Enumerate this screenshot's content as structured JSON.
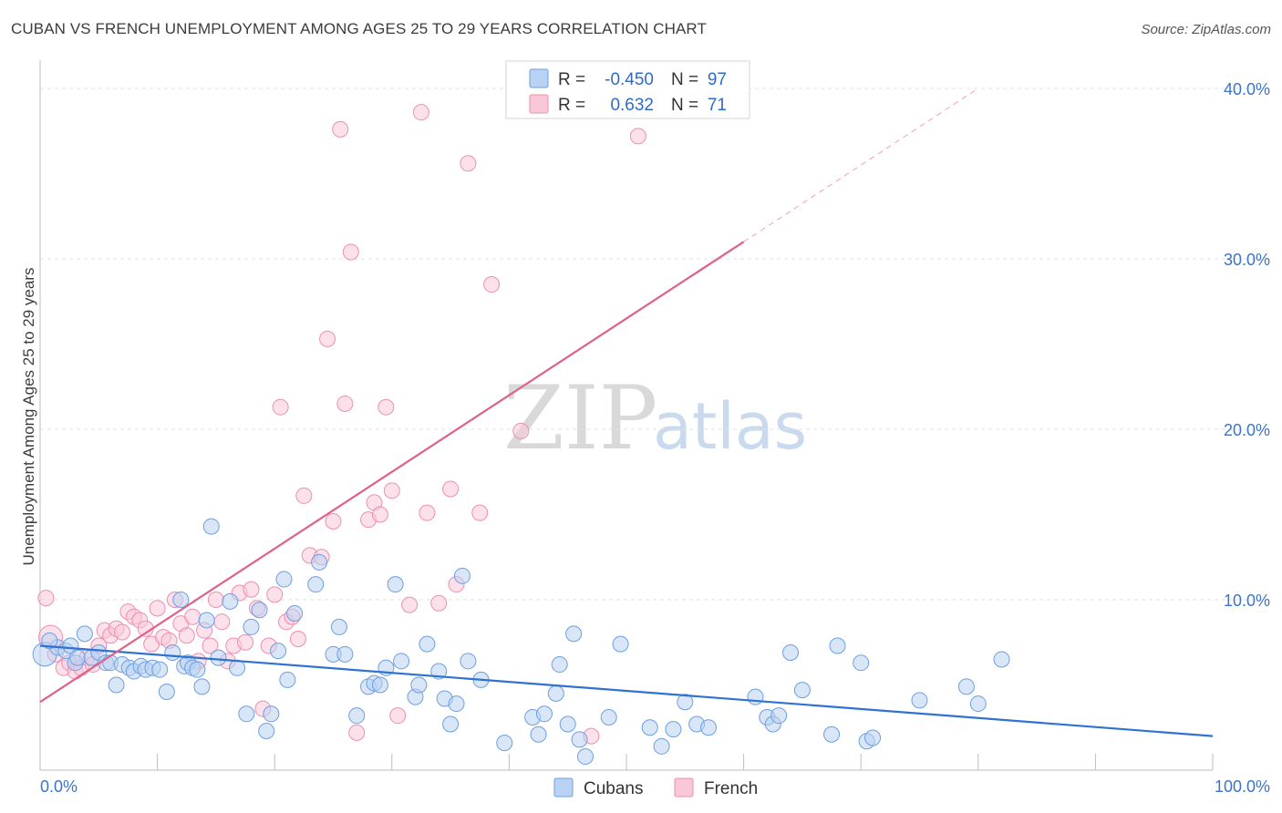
{
  "title": "CUBAN VS FRENCH UNEMPLOYMENT AMONG AGES 25 TO 29 YEARS CORRELATION CHART",
  "source": "Source: ZipAtlas.com",
  "watermark": {
    "zip": "ZIP",
    "atlas": "atlas"
  },
  "legend": {
    "r_label": "R =",
    "n_label": "N =",
    "rows": [
      {
        "name": "Cubans",
        "r": "-0.450",
        "n": "97",
        "fill": "#b9d2f3",
        "stroke": "#6d9fe0"
      },
      {
        "name": "French",
        "r": "0.632",
        "n": "71",
        "fill": "#f9c8d8",
        "stroke": "#ec8fb0"
      }
    ]
  },
  "chart_data": {
    "type": "scatter",
    "title": "CUBAN VS FRENCH UNEMPLOYMENT AMONG AGES 25 TO 29 YEARS CORRELATION CHART",
    "xlabel": "",
    "ylabel": "Unemployment Among Ages 25 to 29 years",
    "xlim": [
      0,
      100
    ],
    "ylim": [
      0,
      40
    ],
    "x_tick_labels": [
      "0.0%",
      "100.0%"
    ],
    "y_ticks": [
      10,
      20,
      30,
      40
    ],
    "y_tick_labels": [
      "10.0%",
      "20.0%",
      "30.0%",
      "40.0%"
    ],
    "grid": "horizontal dashed",
    "legend_position": "top-center",
    "series": [
      {
        "name": "Cubans",
        "color": "#6d9fe0",
        "fill": "#b9d2f3",
        "trend_color": "#2f72d0",
        "trend": {
          "x": [
            0,
            100
          ],
          "y": [
            7.3,
            2.0
          ]
        },
        "points": [
          [
            0.4,
            6.8
          ],
          [
            1.5,
            7.2
          ],
          [
            2.2,
            7.0
          ],
          [
            2.6,
            7.3
          ],
          [
            3.0,
            6.3
          ],
          [
            3.2,
            6.6
          ],
          [
            3.8,
            8.0
          ],
          [
            4.4,
            6.6
          ],
          [
            5.0,
            6.9
          ],
          [
            5.6,
            6.3
          ],
          [
            6.0,
            6.3
          ],
          [
            6.5,
            5.0
          ],
          [
            7.0,
            6.2
          ],
          [
            7.6,
            6.0
          ],
          [
            8.0,
            5.8
          ],
          [
            8.6,
            6.1
          ],
          [
            9.0,
            5.9
          ],
          [
            9.6,
            6.0
          ],
          [
            10.2,
            5.9
          ],
          [
            10.8,
            4.6
          ],
          [
            11.3,
            6.9
          ],
          [
            12.0,
            10.0
          ],
          [
            12.3,
            6.1
          ],
          [
            12.6,
            6.3
          ],
          [
            13.0,
            6.0
          ],
          [
            13.4,
            5.9
          ],
          [
            13.8,
            4.9
          ],
          [
            14.2,
            8.8
          ],
          [
            14.6,
            14.3
          ],
          [
            15.2,
            6.6
          ],
          [
            16.2,
            9.9
          ],
          [
            16.8,
            6.0
          ],
          [
            17.6,
            3.3
          ],
          [
            18.0,
            8.4
          ],
          [
            18.7,
            9.4
          ],
          [
            19.3,
            2.3
          ],
          [
            19.7,
            3.3
          ],
          [
            20.3,
            7.0
          ],
          [
            20.8,
            11.2
          ],
          [
            21.1,
            5.3
          ],
          [
            21.7,
            9.2
          ],
          [
            23.5,
            10.9
          ],
          [
            23.8,
            12.2
          ],
          [
            25.0,
            6.8
          ],
          [
            25.5,
            8.4
          ],
          [
            26.0,
            6.8
          ],
          [
            27.0,
            3.2
          ],
          [
            28.0,
            4.9
          ],
          [
            28.5,
            5.1
          ],
          [
            29.0,
            5.0
          ],
          [
            29.5,
            6.0
          ],
          [
            30.3,
            10.9
          ],
          [
            30.8,
            6.4
          ],
          [
            32.0,
            4.3
          ],
          [
            32.3,
            5.0
          ],
          [
            33.0,
            7.4
          ],
          [
            34.0,
            5.8
          ],
          [
            34.5,
            4.2
          ],
          [
            35.0,
            2.7
          ],
          [
            35.5,
            3.9
          ],
          [
            36.0,
            11.4
          ],
          [
            36.5,
            6.4
          ],
          [
            37.6,
            5.3
          ],
          [
            39.6,
            1.6
          ],
          [
            42.0,
            3.1
          ],
          [
            42.5,
            2.1
          ],
          [
            43.0,
            3.3
          ],
          [
            44.0,
            4.5
          ],
          [
            44.3,
            6.2
          ],
          [
            45.0,
            2.7
          ],
          [
            45.5,
            8.0
          ],
          [
            46.0,
            1.8
          ],
          [
            46.5,
            0.8
          ],
          [
            48.5,
            3.1
          ],
          [
            49.5,
            7.4
          ],
          [
            52.0,
            2.5
          ],
          [
            53.0,
            1.4
          ],
          [
            54.0,
            2.4
          ],
          [
            55.0,
            4.0
          ],
          [
            56.0,
            2.7
          ],
          [
            57.0,
            2.5
          ],
          [
            61.0,
            4.3
          ],
          [
            62.0,
            3.1
          ],
          [
            62.5,
            2.7
          ],
          [
            63.0,
            3.2
          ],
          [
            64.0,
            6.9
          ],
          [
            65.0,
            4.7
          ],
          [
            67.5,
            2.1
          ],
          [
            68.0,
            7.3
          ],
          [
            70.0,
            6.3
          ],
          [
            70.5,
            1.7
          ],
          [
            71.0,
            1.9
          ],
          [
            75.0,
            4.1
          ],
          [
            79.0,
            4.9
          ],
          [
            80.0,
            3.9
          ],
          [
            82.0,
            6.5
          ],
          [
            0.8,
            7.6
          ]
        ]
      },
      {
        "name": "French",
        "color": "#ec8fb0",
        "fill": "#f9c8d8",
        "trend_color": "#e0608c",
        "trend": {
          "x": [
            0,
            60
          ],
          "y": [
            4.0,
            31.0
          ]
        },
        "trend_extension": {
          "x": [
            60,
            80
          ],
          "y": [
            31.0,
            40.0
          ]
        },
        "points": [
          [
            0.5,
            10.1
          ],
          [
            0.9,
            7.8
          ],
          [
            1.3,
            6.8
          ],
          [
            2.0,
            6.0
          ],
          [
            2.5,
            6.3
          ],
          [
            3.0,
            5.8
          ],
          [
            3.5,
            6.0
          ],
          [
            4.0,
            6.6
          ],
          [
            4.5,
            6.2
          ],
          [
            5.0,
            7.3
          ],
          [
            5.5,
            8.2
          ],
          [
            6.0,
            7.9
          ],
          [
            6.5,
            8.3
          ],
          [
            7.0,
            8.1
          ],
          [
            7.5,
            9.3
          ],
          [
            8.0,
            9.0
          ],
          [
            8.5,
            8.8
          ],
          [
            9.0,
            8.3
          ],
          [
            9.5,
            7.4
          ],
          [
            10.0,
            9.5
          ],
          [
            10.5,
            7.8
          ],
          [
            11.0,
            7.6
          ],
          [
            11.5,
            10.0
          ],
          [
            12.0,
            8.6
          ],
          [
            12.5,
            7.9
          ],
          [
            13.0,
            9.0
          ],
          [
            13.5,
            6.4
          ],
          [
            14.0,
            8.2
          ],
          [
            14.5,
            7.3
          ],
          [
            15.0,
            10.0
          ],
          [
            15.5,
            8.7
          ],
          [
            16.0,
            6.4
          ],
          [
            16.5,
            7.3
          ],
          [
            17.0,
            10.4
          ],
          [
            17.5,
            7.5
          ],
          [
            18.0,
            10.6
          ],
          [
            18.5,
            9.5
          ],
          [
            19.0,
            3.6
          ],
          [
            19.5,
            7.3
          ],
          [
            20.0,
            10.3
          ],
          [
            20.5,
            21.3
          ],
          [
            21.0,
            8.7
          ],
          [
            21.5,
            9.0
          ],
          [
            22.0,
            7.7
          ],
          [
            22.5,
            16.1
          ],
          [
            23.0,
            12.6
          ],
          [
            24.0,
            12.5
          ],
          [
            24.5,
            25.3
          ],
          [
            25.0,
            14.6
          ],
          [
            25.6,
            37.6
          ],
          [
            26.0,
            21.5
          ],
          [
            26.5,
            30.4
          ],
          [
            27.0,
            2.2
          ],
          [
            28.0,
            14.7
          ],
          [
            28.5,
            15.7
          ],
          [
            29.0,
            15.0
          ],
          [
            29.5,
            21.3
          ],
          [
            30.0,
            16.4
          ],
          [
            30.5,
            3.2
          ],
          [
            31.5,
            9.7
          ],
          [
            32.5,
            38.6
          ],
          [
            33.0,
            15.1
          ],
          [
            34.0,
            9.8
          ],
          [
            35.0,
            16.5
          ],
          [
            35.5,
            10.9
          ],
          [
            36.5,
            35.6
          ],
          [
            37.5,
            15.1
          ],
          [
            38.5,
            28.5
          ],
          [
            41.0,
            19.9
          ],
          [
            47.0,
            2.0
          ],
          [
            51.0,
            37.2
          ]
        ]
      }
    ],
    "bottom_legend": [
      "Cubans",
      "French"
    ]
  }
}
